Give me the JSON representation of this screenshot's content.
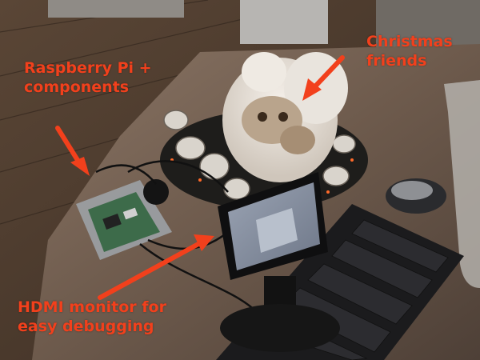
{
  "annotations": {
    "color": "#f2401c",
    "pi": {
      "line1": "Raspberry Pi +",
      "line2": "components"
    },
    "friends": {
      "line1": "Christmas",
      "line2": "friends"
    },
    "hdmi": {
      "line1": "HDMI monitor for",
      "line2": "easy debugging"
    }
  },
  "scene": {
    "subjects": [
      "raspberry-pi-board",
      "owl-figurines",
      "pine-cone-wreath",
      "hdmi-monitor",
      "keyboard",
      "mouse",
      "wood-floor",
      "counter-top"
    ]
  }
}
